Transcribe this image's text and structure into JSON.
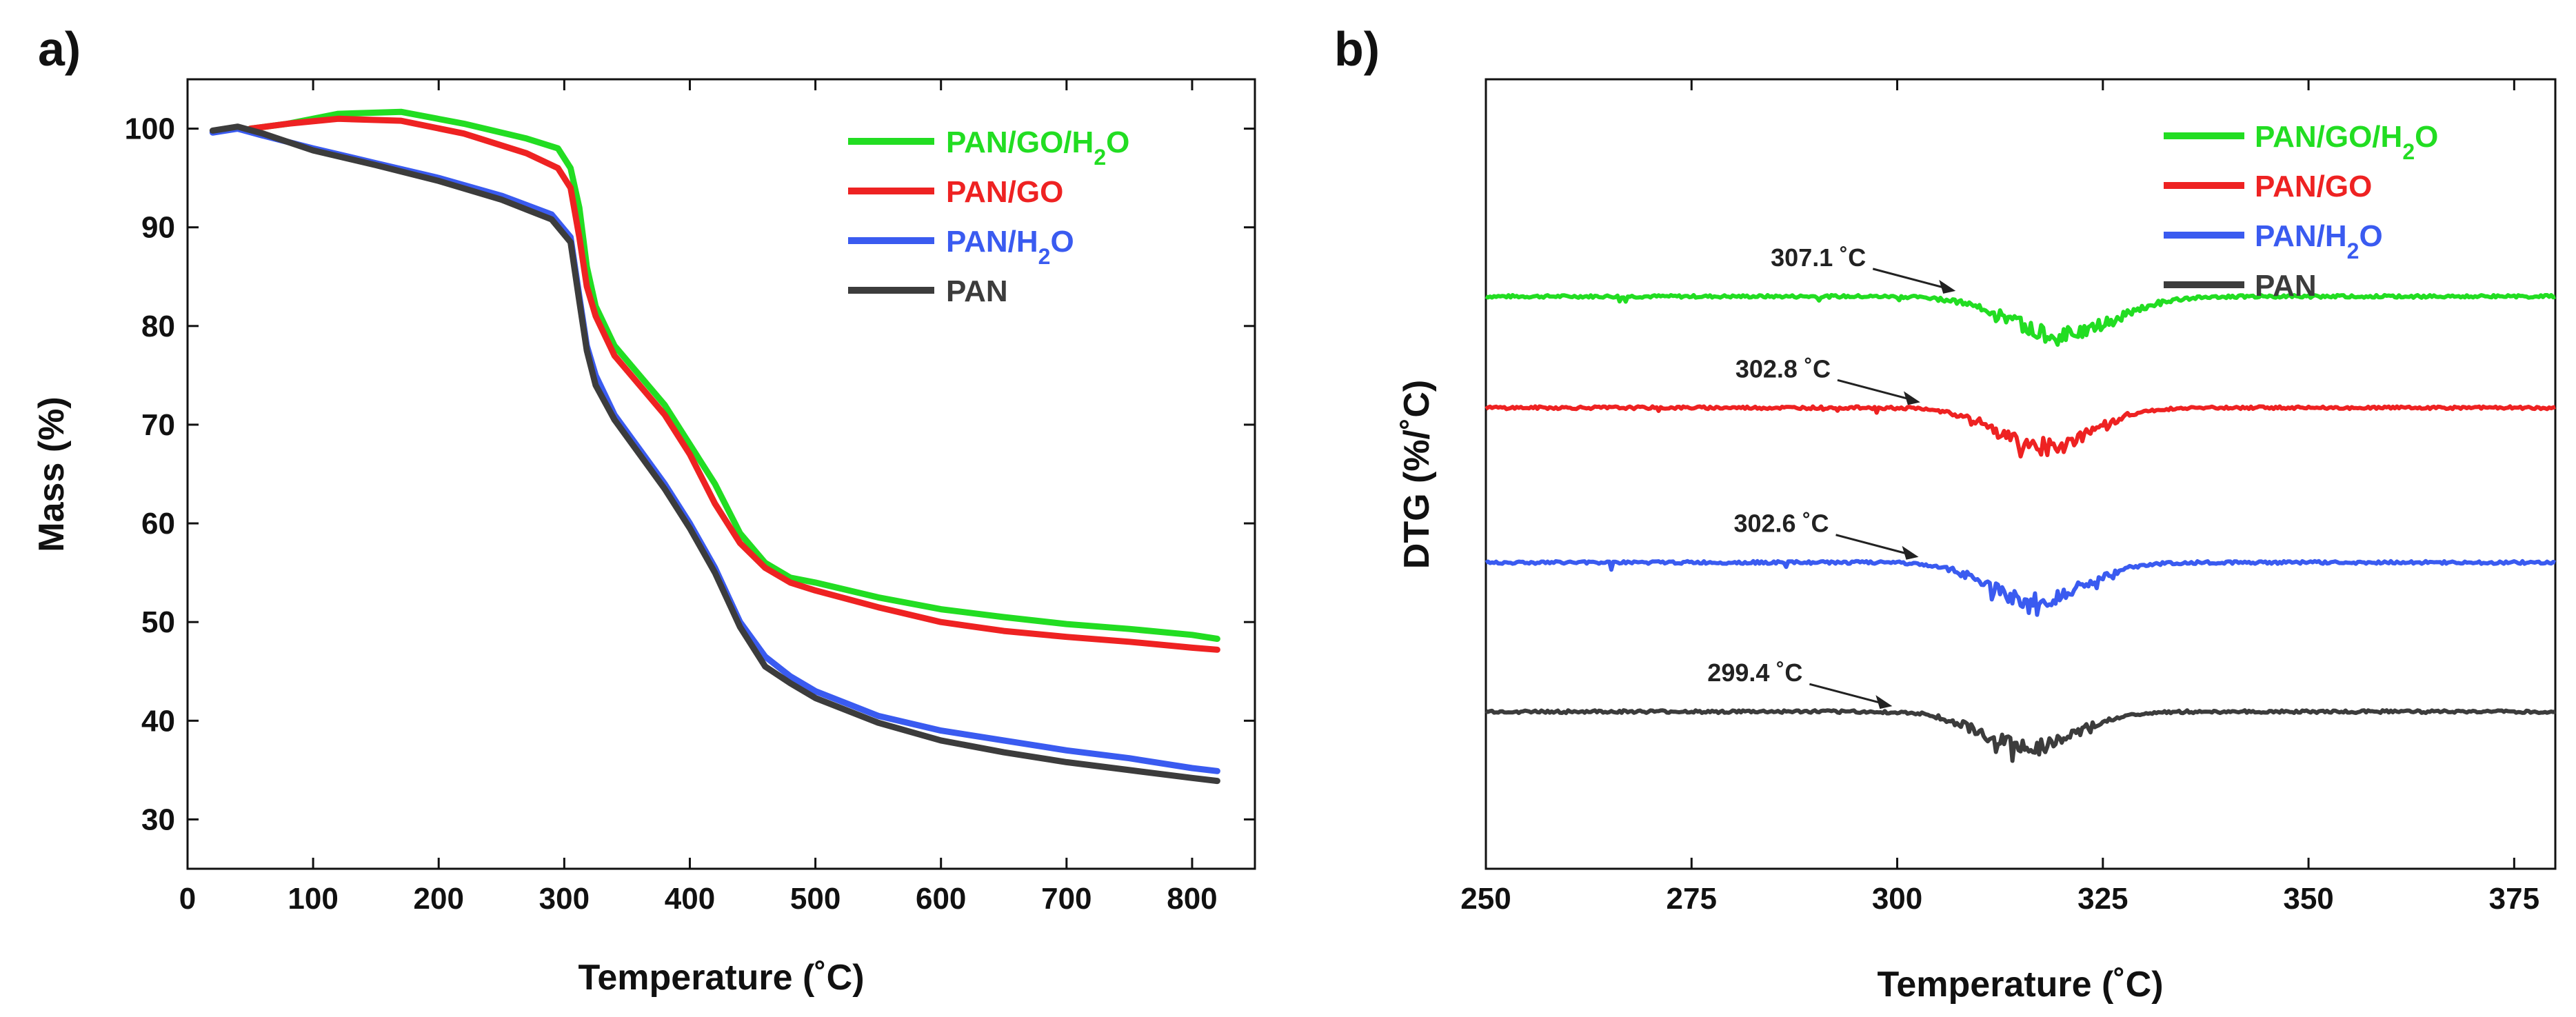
{
  "chart_data": [
    {
      "panel": "a)",
      "type": "line",
      "title": "",
      "xlabel": "Temperature (˚C)",
      "ylabel": "Mass (%)",
      "xlim": [
        0,
        850
      ],
      "ylim": [
        25,
        105
      ],
      "xticks": [
        0,
        100,
        200,
        300,
        400,
        500,
        600,
        700,
        800
      ],
      "yticks": [
        30,
        40,
        50,
        60,
        70,
        80,
        90,
        100
      ],
      "legend_position": "top-right",
      "series": [
        {
          "name": "PAN/GO/H₂O",
          "color": "#22dd22",
          "x": [
            50,
            80,
            120,
            170,
            220,
            270,
            295,
            305,
            312,
            318,
            325,
            340,
            360,
            380,
            400,
            420,
            440,
            460,
            480,
            500,
            550,
            600,
            650,
            700,
            750,
            800,
            820
          ],
          "y": [
            100,
            100.5,
            101.5,
            101.7,
            100.5,
            99,
            98,
            96,
            92,
            86,
            82,
            78,
            75,
            72,
            68,
            64,
            59,
            56,
            54.5,
            54,
            52.5,
            51.3,
            50.5,
            49.8,
            49.3,
            48.7,
            48.3
          ]
        },
        {
          "name": "PAN/GO",
          "color": "#ee2222",
          "x": [
            50,
            80,
            120,
            170,
            220,
            270,
            295,
            305,
            312,
            318,
            325,
            340,
            360,
            380,
            400,
            420,
            440,
            460,
            480,
            500,
            550,
            600,
            650,
            700,
            750,
            800,
            820
          ],
          "y": [
            100,
            100.5,
            101,
            100.8,
            99.5,
            97.5,
            96,
            94,
            89,
            84,
            81,
            77,
            74,
            71,
            67,
            62,
            58,
            55.5,
            54,
            53.2,
            51.5,
            50,
            49.1,
            48.5,
            48,
            47.4,
            47.2
          ]
        },
        {
          "name": "PAN/H₂O",
          "color": "#3a5bf0",
          "x": [
            20,
            40,
            60,
            100,
            150,
            200,
            250,
            290,
            305,
            312,
            318,
            325,
            340,
            360,
            380,
            400,
            420,
            440,
            460,
            480,
            500,
            550,
            600,
            650,
            700,
            750,
            800,
            820
          ],
          "y": [
            99.6,
            100,
            99.3,
            98,
            96.5,
            95,
            93.2,
            91.3,
            89,
            83,
            78,
            75,
            71,
            67.5,
            64,
            60,
            55.5,
            50,
            46.5,
            44.5,
            43,
            40.5,
            39,
            38,
            37,
            36.2,
            35.2,
            34.9
          ]
        },
        {
          "name": "PAN",
          "color": "#3c3c3c",
          "x": [
            20,
            40,
            60,
            100,
            150,
            200,
            250,
            290,
            305,
            312,
            318,
            325,
            340,
            360,
            380,
            400,
            420,
            440,
            460,
            480,
            500,
            550,
            600,
            650,
            700,
            750,
            800,
            820
          ],
          "y": [
            99.8,
            100.2,
            99.5,
            97.8,
            96.3,
            94.7,
            92.8,
            90.8,
            88.5,
            82.5,
            77.5,
            74,
            70.5,
            67,
            63.5,
            59.5,
            55,
            49.5,
            45.5,
            43.8,
            42.3,
            39.8,
            38,
            36.8,
            35.8,
            35,
            34.2,
            33.9
          ]
        }
      ]
    },
    {
      "panel": "b)",
      "type": "line",
      "title": "",
      "xlabel": "Temperature (˚C)",
      "ylabel": "DTG (%/˚C)",
      "xlim": [
        250,
        380
      ],
      "ylim": [
        0,
        100
      ],
      "xticks": [
        250,
        275,
        300,
        325,
        350,
        375
      ],
      "yticks_shown": false,
      "legend_position": "top-right",
      "series": [
        {
          "name": "PAN/GO/H₂O",
          "color": "#22dd22",
          "baseline": 72.5,
          "dip_center": 320,
          "dip_depth": 4.8,
          "dip_width": 9,
          "onset_label": "307.1 ˚C",
          "onset_x": 307.1
        },
        {
          "name": "PAN/GO",
          "color": "#ee2222",
          "baseline": 58.4,
          "dip_center": 318,
          "dip_depth": 5,
          "dip_width": 8,
          "onset_label": "302.8 ˚C",
          "onset_x": 302.8
        },
        {
          "name": "PAN/H₂O",
          "color": "#3a5bf0",
          "baseline": 38.8,
          "dip_center": 317,
          "dip_depth": 5,
          "dip_width": 8,
          "onset_label": "302.6 ˚C",
          "onset_x": 302.6
        },
        {
          "name": "PAN",
          "color": "#3c3c3c",
          "baseline": 19.9,
          "dip_center": 316,
          "dip_depth": 4.5,
          "dip_width": 8,
          "onset_label": "299.4 ˚C",
          "onset_x": 299.4
        }
      ]
    }
  ]
}
